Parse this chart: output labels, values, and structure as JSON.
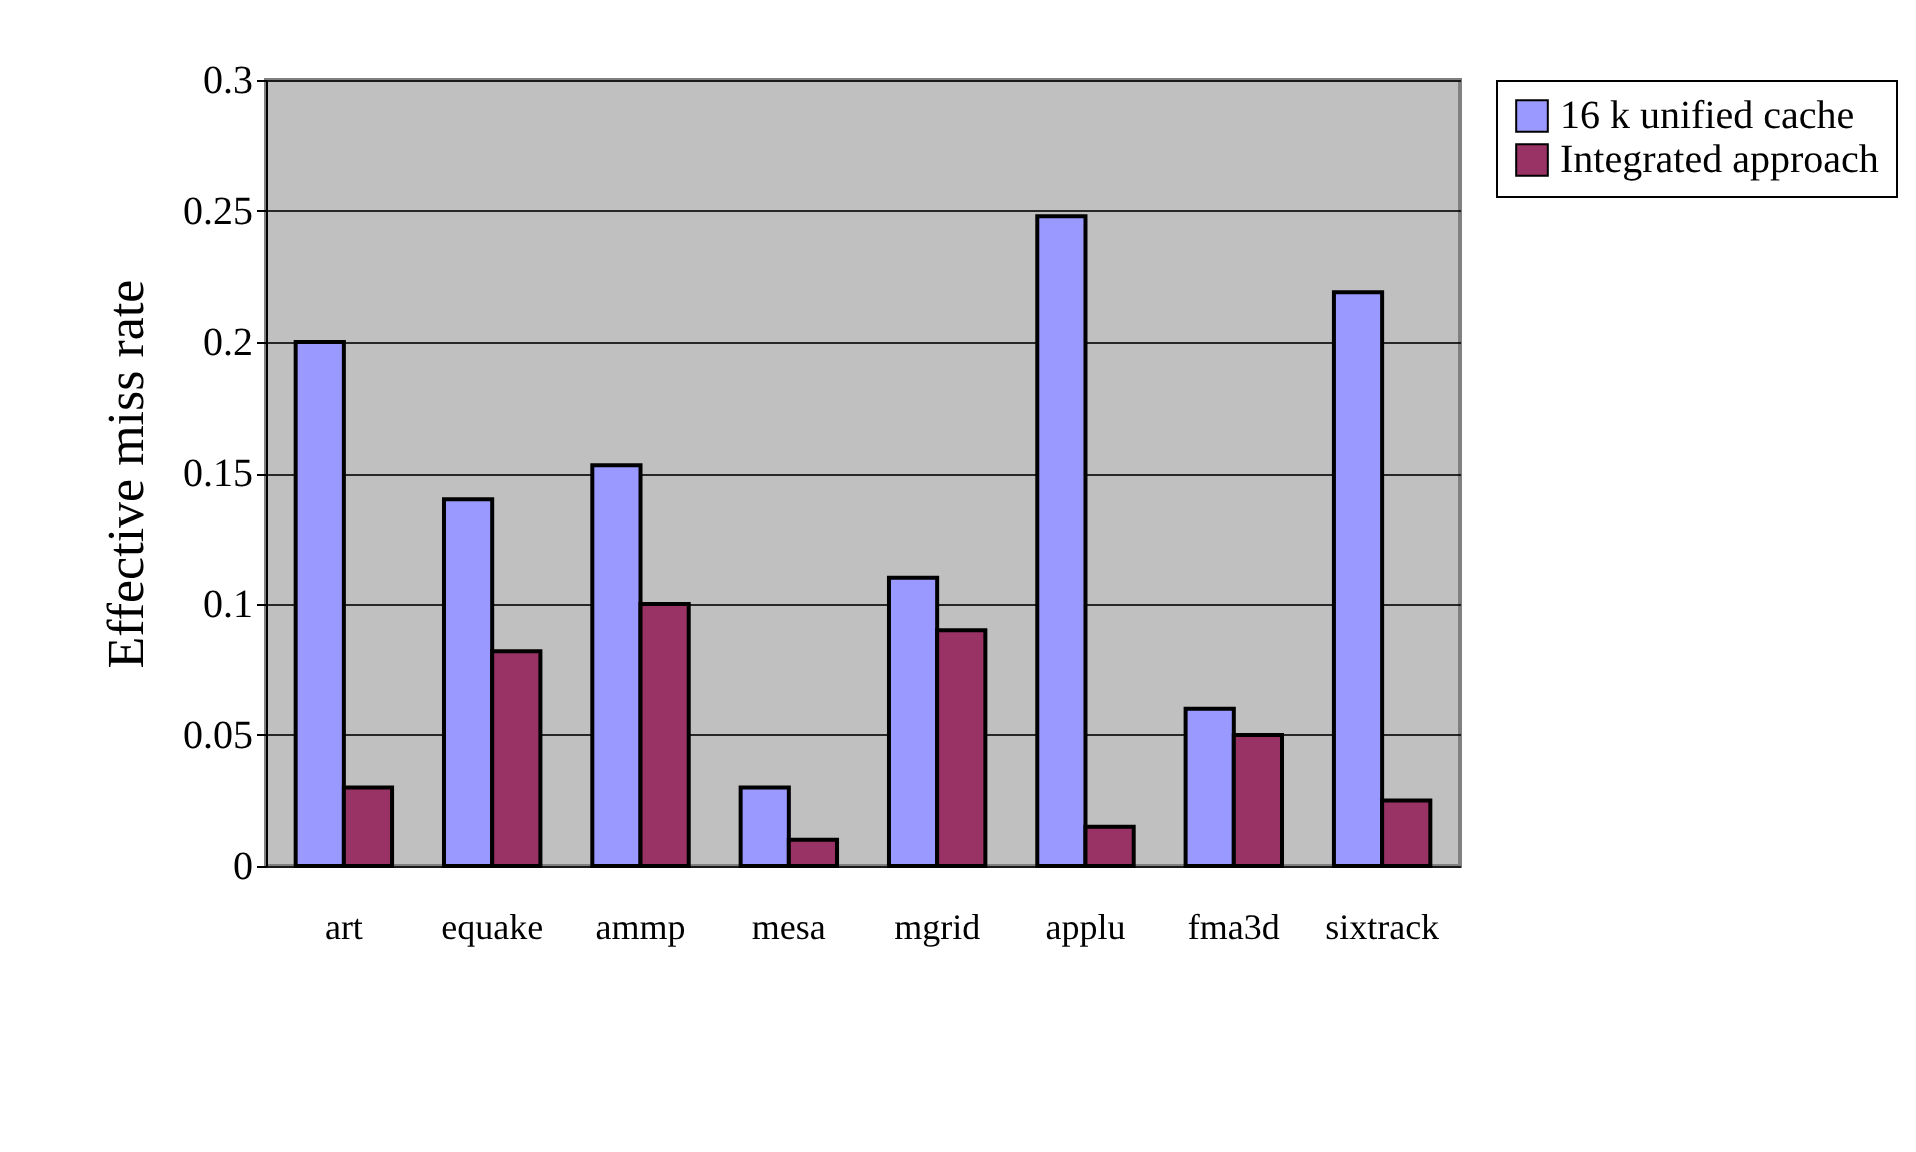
{
  "chart_data": {
    "type": "bar",
    "ylabel": "Effective miss rate",
    "categories": [
      "art",
      "equake",
      "ammp",
      "mesa",
      "mgrid",
      "applu",
      "fma3d",
      "sixtrack"
    ],
    "series": [
      {
        "name": "16 k unified cache",
        "color": "#9999ff",
        "values": [
          0.2,
          0.14,
          0.153,
          0.03,
          0.11,
          0.248,
          0.06,
          0.219
        ]
      },
      {
        "name": "Integrated approach",
        "color": "#993366",
        "values": [
          0.03,
          0.082,
          0.1,
          0.01,
          0.09,
          0.015,
          0.05,
          0.025
        ]
      }
    ],
    "ylim": [
      0,
      0.3
    ],
    "yticks": [
      {
        "value": 0,
        "label": "0"
      },
      0.05,
      {
        "value": 0.1,
        "label": "0.1"
      },
      0.15,
      {
        "value": 0.2,
        "label": "0.2"
      },
      0.25,
      {
        "value": 0.3,
        "label": "0.3"
      }
    ],
    "grid": "y",
    "legend": "right"
  }
}
